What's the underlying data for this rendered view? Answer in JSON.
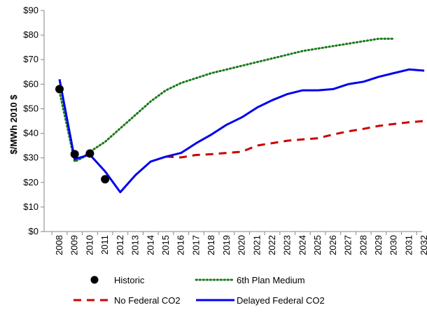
{
  "chart_data": {
    "type": "line",
    "title": "",
    "xlabel": "",
    "ylabel": "$/MWh 2010 $",
    "ylim": [
      0,
      90
    ],
    "y_ticks": [
      "$0",
      "$10",
      "$20",
      "$30",
      "$40",
      "$50",
      "$60",
      "$70",
      "$80",
      "$90"
    ],
    "x": [
      2008,
      2009,
      2010,
      2011,
      2012,
      2013,
      2014,
      2015,
      2016,
      2017,
      2018,
      2019,
      2020,
      2021,
      2022,
      2023,
      2024,
      2025,
      2026,
      2027,
      2028,
      2029,
      2030,
      2031,
      2032
    ],
    "x_tick_labels": [
      "2008",
      "2009",
      "2010",
      "2011",
      "2012",
      "2013",
      "2014",
      "2015",
      "2016",
      "2017",
      "2018",
      "2019",
      "2020",
      "2021",
      "2022",
      "2023",
      "2024",
      "2025",
      "2026",
      "2027",
      "2028",
      "2029",
      "2030",
      "2031",
      "2032"
    ],
    "grid": false,
    "legend_position": "bottom",
    "series": [
      {
        "name": "Historic",
        "style": "markers",
        "color": "#000000",
        "points": [
          [
            2008,
            58
          ],
          [
            2009,
            31.5
          ],
          [
            2010,
            31.8
          ],
          [
            2011,
            21.3
          ]
        ]
      },
      {
        "name": "6th Plan Medium",
        "style": "dotted",
        "color": "#1a7a1a",
        "points": [
          [
            2008,
            57
          ],
          [
            2009,
            28.5
          ],
          [
            2009.5,
            30
          ],
          [
            2010,
            32.5
          ],
          [
            2011,
            36.5
          ],
          [
            2012,
            42
          ],
          [
            2013,
            47.5
          ],
          [
            2014,
            53
          ],
          [
            2015,
            57.5
          ],
          [
            2016,
            60.5
          ],
          [
            2017,
            62.5
          ],
          [
            2018,
            64.5
          ],
          [
            2019,
            66
          ],
          [
            2020,
            67.5
          ],
          [
            2021,
            69
          ],
          [
            2022,
            70.5
          ],
          [
            2023,
            72
          ],
          [
            2024,
            73.5
          ],
          [
            2025,
            74.5
          ],
          [
            2026,
            75.5
          ],
          [
            2027,
            76.5
          ],
          [
            2028,
            77.5
          ],
          [
            2029,
            78.5
          ],
          [
            2030,
            78.5
          ]
        ]
      },
      {
        "name": "No Federal CO2",
        "style": "dashed",
        "color": "#cc0000",
        "points": [
          [
            2015,
            30.5
          ],
          [
            2016,
            30.2
          ],
          [
            2017,
            31.2
          ],
          [
            2018,
            31.5
          ],
          [
            2019,
            32
          ],
          [
            2020,
            32.5
          ],
          [
            2021,
            35
          ],
          [
            2022,
            36
          ],
          [
            2023,
            37
          ],
          [
            2024,
            37.5
          ],
          [
            2025,
            38
          ],
          [
            2026,
            39.5
          ],
          [
            2027,
            40.8
          ],
          [
            2028,
            41.8
          ],
          [
            2029,
            43
          ],
          [
            2030,
            43.8
          ],
          [
            2031,
            44.5
          ],
          [
            2032,
            45
          ]
        ]
      },
      {
        "name": "Delayed Federal CO2",
        "style": "solid",
        "color": "#0000ee",
        "points": [
          [
            2008,
            62
          ],
          [
            2009,
            29.5
          ],
          [
            2010,
            31.3
          ],
          [
            2011,
            24.5
          ],
          [
            2012,
            16
          ],
          [
            2013,
            23
          ],
          [
            2014,
            28.5
          ],
          [
            2015,
            30.5
          ],
          [
            2016,
            32
          ],
          [
            2017,
            36
          ],
          [
            2018,
            39.5
          ],
          [
            2019,
            43.5
          ],
          [
            2020,
            46.5
          ],
          [
            2021,
            50.5
          ],
          [
            2022,
            53.5
          ],
          [
            2023,
            56
          ],
          [
            2024,
            57.5
          ],
          [
            2025,
            57.5
          ],
          [
            2026,
            58
          ],
          [
            2027,
            60
          ],
          [
            2028,
            61
          ],
          [
            2029,
            63
          ],
          [
            2030,
            64.5
          ],
          [
            2031,
            66
          ],
          [
            2032,
            65.5
          ]
        ]
      }
    ]
  }
}
